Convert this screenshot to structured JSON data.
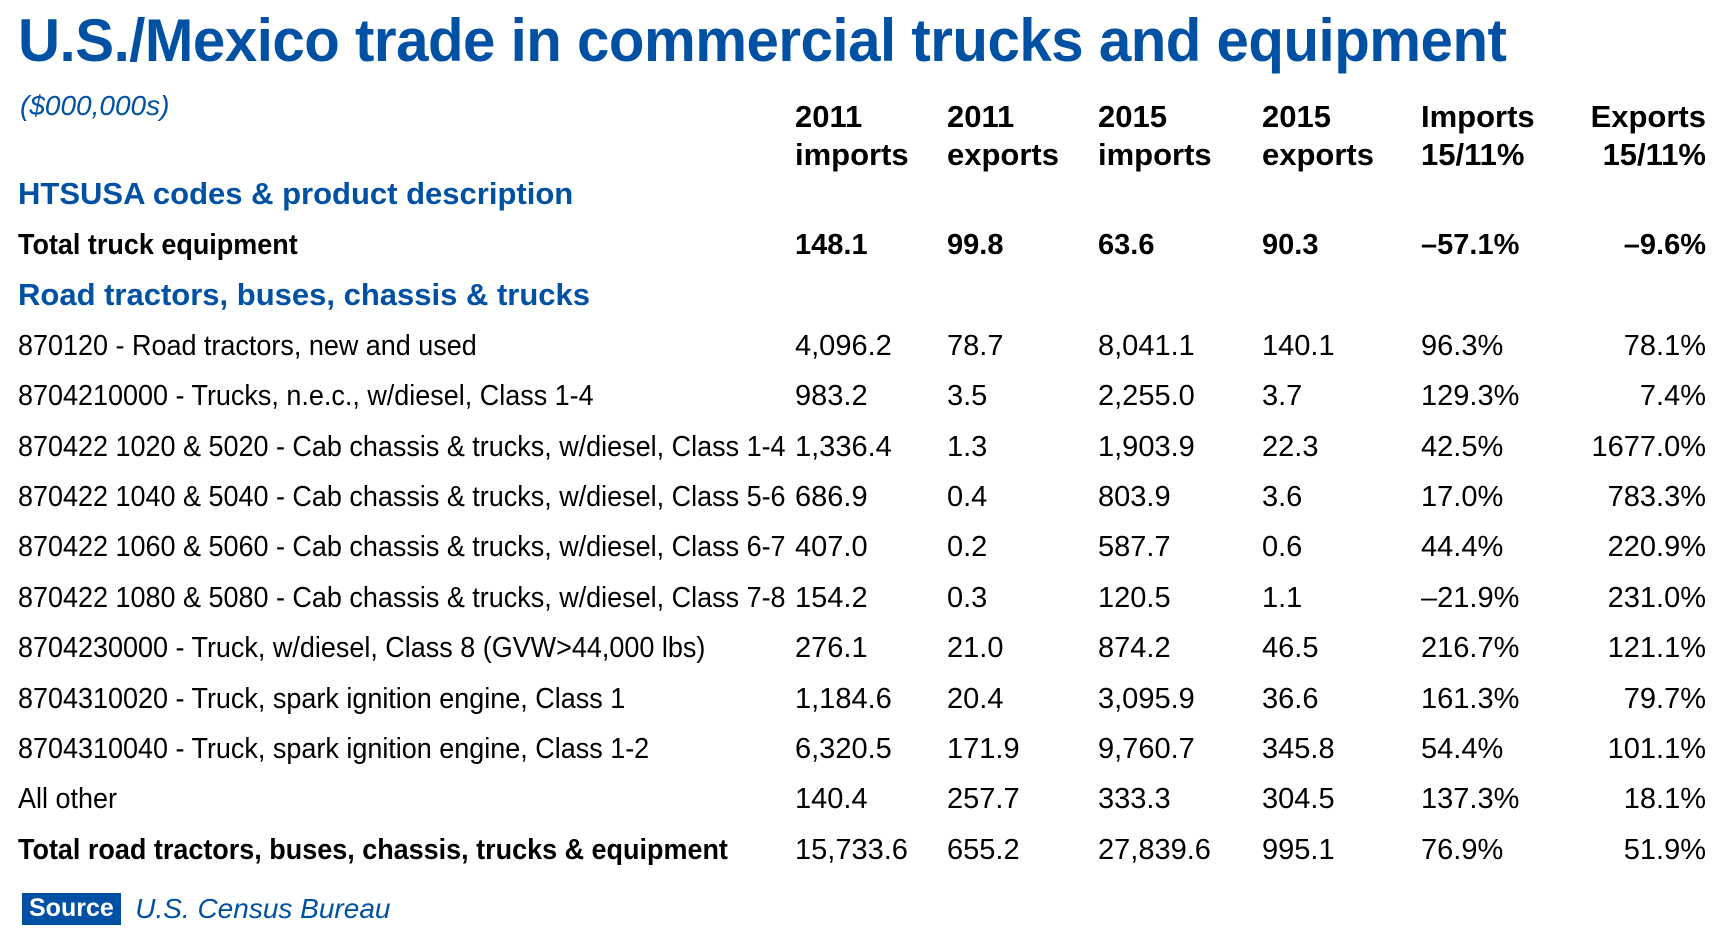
{
  "title": "U.S./Mexico trade in commercial trucks and equipment",
  "units": "($000,000s)",
  "chart_data": {
    "type": "table",
    "columns": [
      {
        "line1": "2011",
        "line2": "imports"
      },
      {
        "line1": "2011",
        "line2": "exports"
      },
      {
        "line1": "2015",
        "line2": "imports"
      },
      {
        "line1": "2015",
        "line2": "exports"
      },
      {
        "line1": "Imports",
        "line2": "15/11%"
      },
      {
        "line1": "Exports",
        "line2": "15/11%"
      }
    ],
    "section_codes": "HTSUSA codes & product description",
    "total_truck_equipment": {
      "label": "Total truck equipment",
      "values": [
        "148.1",
        "99.8",
        "63.6",
        "90.3",
        "–57.1%",
        "–9.6%"
      ]
    },
    "section_road": "Road tractors, buses, chassis & trucks",
    "rows": [
      {
        "label": "870120 - Road tractors, new and used",
        "values": [
          "4,096.2",
          "78.7",
          "8,041.1",
          "140.1",
          "96.3%",
          "78.1%"
        ]
      },
      {
        "label": "8704210000 - Trucks, n.e.c., w/diesel, Class 1-4",
        "values": [
          "983.2",
          "3.5",
          "2,255.0",
          "3.7",
          "129.3%",
          "7.4%"
        ]
      },
      {
        "label": "870422 1020 & 5020 - Cab chassis & trucks, w/diesel, Class 1-4",
        "values": [
          "1,336.4",
          "1.3",
          "1,903.9",
          "22.3",
          "42.5%",
          "1677.0%"
        ]
      },
      {
        "label": "870422 1040 & 5040 - Cab chassis & trucks, w/diesel, Class 5-6",
        "values": [
          "686.9",
          "0.4",
          "803.9",
          "3.6",
          "17.0%",
          "783.3%"
        ]
      },
      {
        "label": "870422 1060 & 5060 - Cab chassis & trucks, w/diesel, Class 6-7",
        "values": [
          "407.0",
          "0.2",
          "587.7",
          "0.6",
          "44.4%",
          "220.9%"
        ]
      },
      {
        "label": "870422 1080 & 5080 - Cab chassis & trucks, w/diesel, Class 7-8",
        "values": [
          "154.2",
          "0.3",
          "120.5",
          "1.1",
          "–21.9%",
          "231.0%"
        ]
      },
      {
        "label": "8704230000 - Truck, w/diesel, Class 8 (GVW>44,000 lbs)",
        "values": [
          "276.1",
          "21.0",
          "874.2",
          "46.5",
          "216.7%",
          "121.1%"
        ]
      },
      {
        "label": "8704310020 - Truck, spark ignition engine, Class 1",
        "values": [
          "1,184.6",
          "20.4",
          "3,095.9",
          "36.6",
          "161.3%",
          "79.7%"
        ]
      },
      {
        "label": "8704310040 - Truck, spark ignition engine, Class 1-2",
        "values": [
          "6,320.5",
          "171.9",
          "9,760.7",
          "345.8",
          "54.4%",
          "101.1%"
        ]
      },
      {
        "label": "All other",
        "values": [
          "140.4",
          "257.7",
          "333.3",
          "304.5",
          "137.3%",
          "18.1%"
        ]
      }
    ],
    "total_road": {
      "label": "Total road tractors, buses, chassis, trucks & equipment",
      "values": [
        "15,733.6",
        "655.2",
        "27,839.6",
        "995.1",
        "76.9%",
        "51.9%"
      ]
    }
  },
  "source": {
    "badge": "Source",
    "text": "U.S. Census Bureau"
  },
  "colors": {
    "accent": "#0051a3",
    "text": "#000000",
    "background": "#ffffff"
  }
}
